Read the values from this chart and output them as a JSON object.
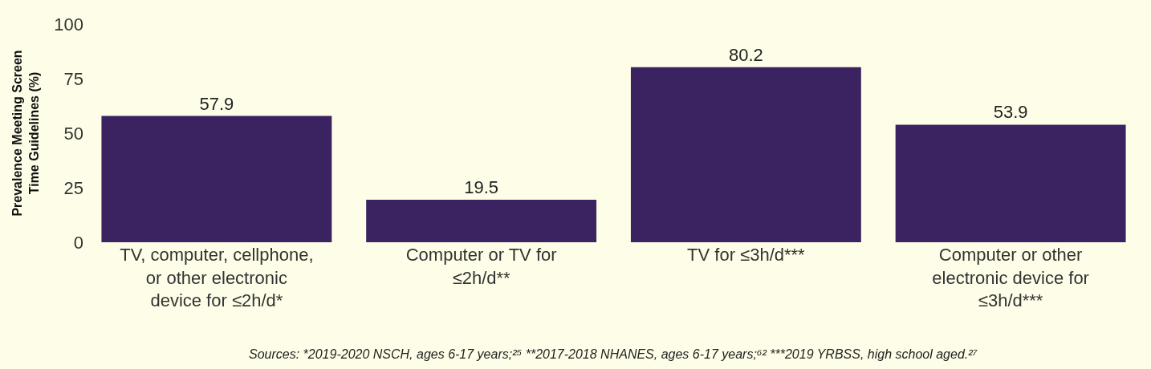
{
  "chart_data": {
    "type": "bar",
    "ylabel": "Prevalence Meeting Screen Time Guidelines (%)",
    "categories": [
      "TV, computer, cellphone, or other electronic device for ≤2h/d*",
      "Computer or TV for ≤2h/d**",
      "TV for ≤3h/d***",
      "Computer or other electronic device for ≤3h/d***"
    ],
    "values": [
      57.9,
      19.5,
      80.2,
      53.9
    ],
    "color": "#3a2360",
    "data_labels": true,
    "ylim": [
      0,
      100
    ],
    "yticks": [
      0,
      25,
      50,
      75,
      100
    ],
    "grid": false,
    "legend": false,
    "annotations": [
      "Sources: *2019-2020 NSCH, ages 6-17 years;²⁵ **2017-2018 NHANES, ages 6-17 years;⁶² ***2019 YRBSS, high school aged.²⁷"
    ]
  }
}
